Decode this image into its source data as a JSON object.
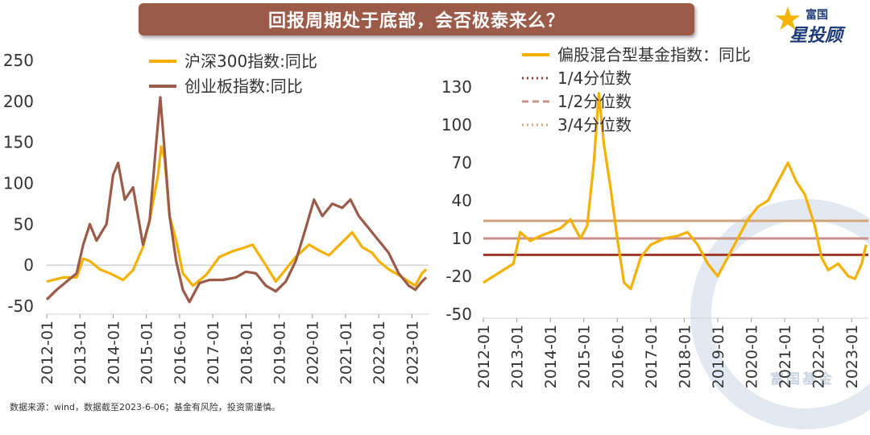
{
  "title": "回报周期处于底部，会否极泰来么？",
  "logo": {
    "top": "富国",
    "bottom": "星投顾"
  },
  "watermark": "富国基金",
  "footnote": "数据来源：wind，数据截至2023-6-06；基金有风险，投资需谨慎。",
  "colors": {
    "csi300": "#f5b000",
    "chinext": "#9c5a48",
    "hybrid": "#f5b000",
    "q1": "#a0382a",
    "q2": "#c8928a",
    "q3": "#d3a47c"
  },
  "chart_data": [
    {
      "type": "line",
      "x_ticks": [
        "2012-01",
        "2013-01",
        "2014-01",
        "2015-01",
        "2016-01",
        "2017-01",
        "2018-01",
        "2019-01",
        "2020-01",
        "2021-01",
        "2022-01",
        "2023-01"
      ],
      "y_ticks": [
        "250",
        "200",
        "150",
        "100",
        "50",
        "0",
        "-50"
      ],
      "ylim": [
        -50,
        250
      ],
      "legend_position": "top",
      "series": [
        {
          "name": "沪深300指数:同比",
          "points": [
            [
              2012.0,
              -20
            ],
            [
              2012.5,
              -15
            ],
            [
              2012.9,
              -15
            ],
            [
              2013.1,
              8
            ],
            [
              2013.3,
              5
            ],
            [
              2013.6,
              -5
            ],
            [
              2013.9,
              -10
            ],
            [
              2014.3,
              -18
            ],
            [
              2014.6,
              -6
            ],
            [
              2014.9,
              22
            ],
            [
              2015.1,
              55
            ],
            [
              2015.35,
              110
            ],
            [
              2015.45,
              145
            ],
            [
              2015.55,
              130
            ],
            [
              2015.7,
              60
            ],
            [
              2015.9,
              30
            ],
            [
              2016.1,
              -10
            ],
            [
              2016.4,
              -25
            ],
            [
              2016.8,
              -12
            ],
            [
              2017.2,
              10
            ],
            [
              2017.6,
              17
            ],
            [
              2018.0,
              22
            ],
            [
              2018.2,
              25
            ],
            [
              2018.6,
              0
            ],
            [
              2018.9,
              -20
            ],
            [
              2019.2,
              -5
            ],
            [
              2019.5,
              10
            ],
            [
              2019.9,
              25
            ],
            [
              2020.2,
              18
            ],
            [
              2020.5,
              12
            ],
            [
              2020.9,
              28
            ],
            [
              2021.2,
              40
            ],
            [
              2021.5,
              22
            ],
            [
              2021.8,
              15
            ],
            [
              2022.0,
              5
            ],
            [
              2022.3,
              -5
            ],
            [
              2022.6,
              -12
            ],
            [
              2022.9,
              -20
            ],
            [
              2023.1,
              -25
            ],
            [
              2023.3,
              -10
            ],
            [
              2023.43,
              -5
            ]
          ]
        },
        {
          "name": "创业板指数:同比",
          "points": [
            [
              2012.0,
              -42
            ],
            [
              2012.3,
              -30
            ],
            [
              2012.6,
              -20
            ],
            [
              2012.9,
              -10
            ],
            [
              2013.1,
              25
            ],
            [
              2013.3,
              50
            ],
            [
              2013.5,
              30
            ],
            [
              2013.8,
              50
            ],
            [
              2014.0,
              110
            ],
            [
              2014.15,
              125
            ],
            [
              2014.35,
              80
            ],
            [
              2014.6,
              95
            ],
            [
              2014.9,
              25
            ],
            [
              2015.1,
              55
            ],
            [
              2015.3,
              150
            ],
            [
              2015.42,
              205
            ],
            [
              2015.55,
              140
            ],
            [
              2015.7,
              60
            ],
            [
              2015.9,
              5
            ],
            [
              2016.1,
              -30
            ],
            [
              2016.3,
              -45
            ],
            [
              2016.6,
              -22
            ],
            [
              2016.9,
              -18
            ],
            [
              2017.3,
              -18
            ],
            [
              2017.7,
              -15
            ],
            [
              2018.0,
              -8
            ],
            [
              2018.3,
              -10
            ],
            [
              2018.6,
              -25
            ],
            [
              2018.9,
              -32
            ],
            [
              2019.2,
              -20
            ],
            [
              2019.5,
              5
            ],
            [
              2019.8,
              45
            ],
            [
              2020.05,
              80
            ],
            [
              2020.3,
              60
            ],
            [
              2020.6,
              75
            ],
            [
              2020.9,
              70
            ],
            [
              2021.15,
              80
            ],
            [
              2021.4,
              60
            ],
            [
              2021.7,
              45
            ],
            [
              2022.0,
              30
            ],
            [
              2022.3,
              15
            ],
            [
              2022.6,
              -10
            ],
            [
              2022.9,
              -25
            ],
            [
              2023.1,
              -30
            ],
            [
              2023.3,
              -20
            ],
            [
              2023.43,
              -15
            ]
          ]
        }
      ]
    },
    {
      "type": "line",
      "x_ticks": [
        "2012-01",
        "2013-01",
        "2014-01",
        "2015-01",
        "2016-01",
        "2017-01",
        "2018-01",
        "2019-01",
        "2020-01",
        "2021-01",
        "2022-01",
        "2023-01"
      ],
      "y_ticks": [
        "130",
        "100",
        "70",
        "40",
        "10",
        "-20",
        "-50"
      ],
      "ylim": [
        -50,
        130
      ],
      "legend_position": "top",
      "series": [
        {
          "name": "偏股混合型基金指数：同比",
          "points": [
            [
              2012.0,
              -25
            ],
            [
              2012.3,
              -20
            ],
            [
              2012.6,
              -15
            ],
            [
              2012.9,
              -10
            ],
            [
              2013.1,
              15
            ],
            [
              2013.4,
              8
            ],
            [
              2013.7,
              12
            ],
            [
              2014.0,
              15
            ],
            [
              2014.3,
              18
            ],
            [
              2014.6,
              25
            ],
            [
              2014.9,
              10
            ],
            [
              2015.1,
              20
            ],
            [
              2015.3,
              70
            ],
            [
              2015.45,
              125
            ],
            [
              2015.6,
              85
            ],
            [
              2015.8,
              50
            ],
            [
              2016.0,
              10
            ],
            [
              2016.2,
              -25
            ],
            [
              2016.4,
              -30
            ],
            [
              2016.7,
              -5
            ],
            [
              2017.0,
              5
            ],
            [
              2017.4,
              10
            ],
            [
              2017.8,
              12
            ],
            [
              2018.1,
              15
            ],
            [
              2018.4,
              5
            ],
            [
              2018.7,
              -10
            ],
            [
              2019.0,
              -20
            ],
            [
              2019.3,
              -5
            ],
            [
              2019.6,
              10
            ],
            [
              2019.9,
              25
            ],
            [
              2020.2,
              35
            ],
            [
              2020.5,
              40
            ],
            [
              2020.8,
              55
            ],
            [
              2021.1,
              70
            ],
            [
              2021.35,
              55
            ],
            [
              2021.6,
              45
            ],
            [
              2021.9,
              20
            ],
            [
              2022.1,
              -5
            ],
            [
              2022.3,
              -15
            ],
            [
              2022.6,
              -10
            ],
            [
              2022.9,
              -20
            ],
            [
              2023.1,
              -22
            ],
            [
              2023.3,
              -10
            ],
            [
              2023.43,
              5
            ]
          ]
        }
      ],
      "reference_lines": [
        {
          "name": "1/4分位数",
          "value": -3,
          "style": "dotted",
          "color": "#a0382a"
        },
        {
          "name": "1/2分位数",
          "value": 10,
          "style": "dashed",
          "color": "#c8928a"
        },
        {
          "name": "3/4分位数",
          "value": 24,
          "style": "dotted",
          "color": "#d3a47c"
        }
      ]
    }
  ]
}
